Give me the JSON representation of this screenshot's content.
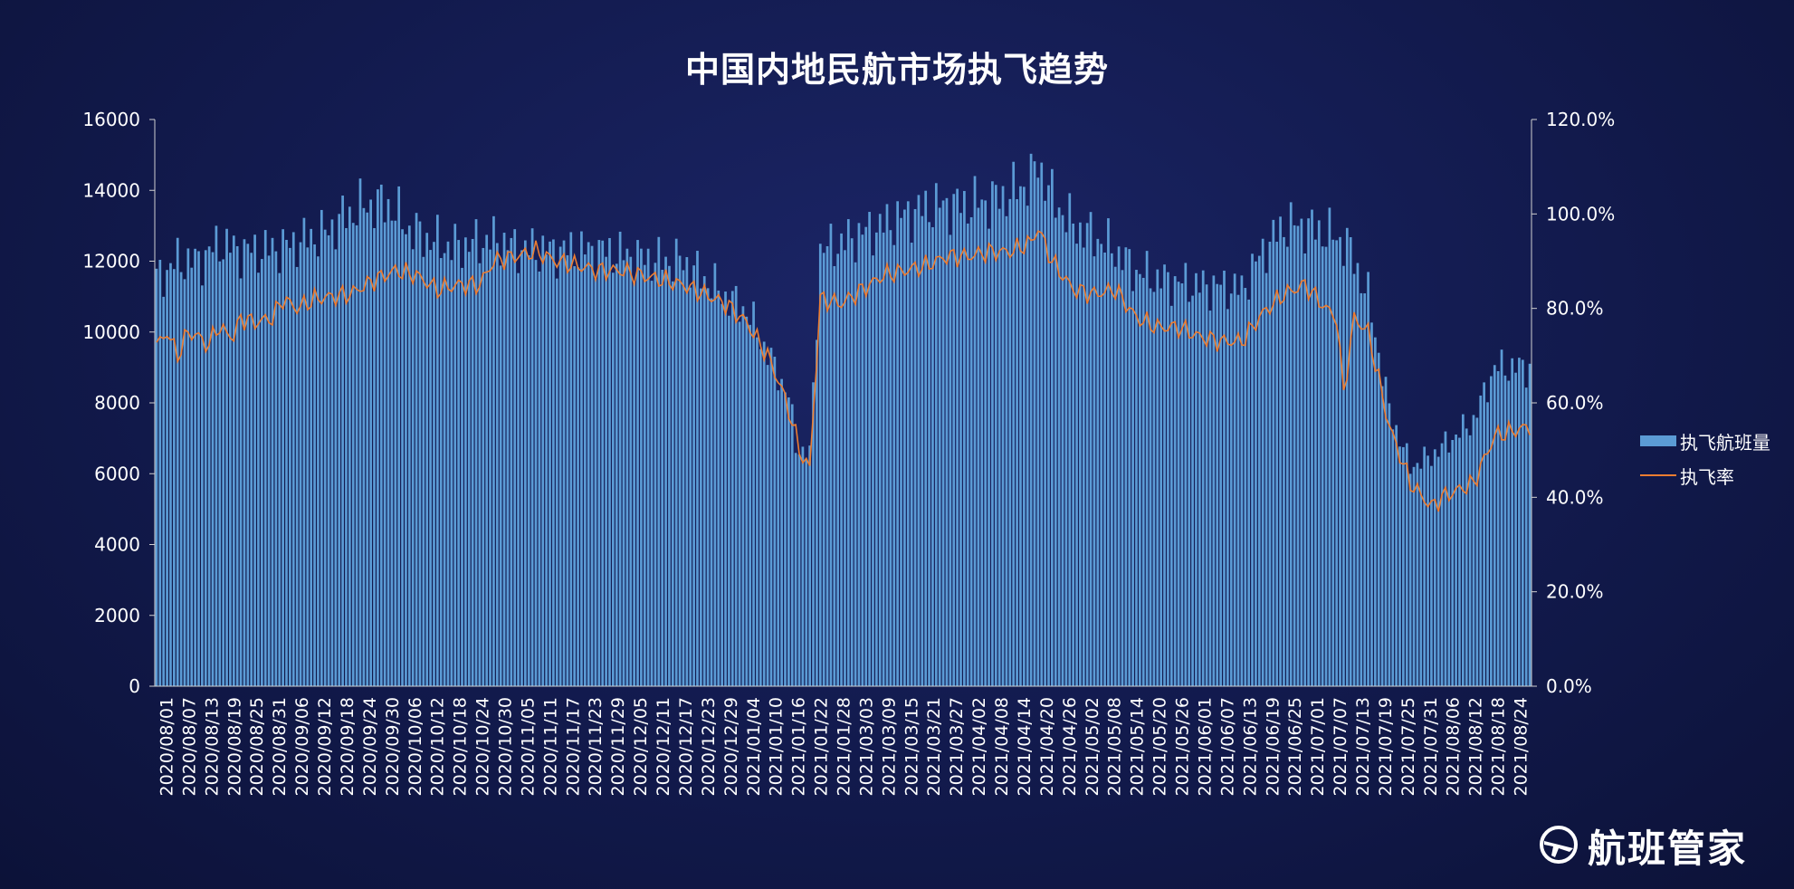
{
  "brand": {
    "name": "航班管家",
    "logo_icon": "plane-globe-logo-icon"
  },
  "colors": {
    "bar": "#5b9bd5",
    "line": "#ed7d31",
    "axis": "#d0d0d0",
    "background": "#121a4d"
  },
  "chart_data": {
    "type": "bar",
    "title": "中国内地民航市场执飞趋势",
    "xlabel": "",
    "ylabel": "",
    "y_left_lim": [
      0,
      16000
    ],
    "y_left_ticks": [
      "0",
      "2000",
      "4000",
      "6000",
      "8000",
      "10000",
      "12000",
      "14000",
      "16000"
    ],
    "y_right_lim": [
      0,
      120
    ],
    "y_right_ticks": [
      "0.0%",
      "20.0%",
      "40.0%",
      "60.0%",
      "80.0%",
      "100.0%",
      "120.0%"
    ],
    "grid": false,
    "legend_position": "right",
    "x_start": "2020/08/01",
    "x_end": "2021/08/27",
    "x_tick_labels": [
      "2020/08/01",
      "2020/08/07",
      "2020/08/13",
      "2020/08/19",
      "2020/08/25",
      "2020/08/31",
      "2020/09/06",
      "2020/09/12",
      "2020/09/18",
      "2020/09/24",
      "2020/09/30",
      "2020/10/06",
      "2020/10/12",
      "2020/10/18",
      "2020/10/24",
      "2020/10/30",
      "2020/11/05",
      "2020/11/11",
      "2020/11/17",
      "2020/11/23",
      "2020/11/29",
      "2020/12/05",
      "2020/12/11",
      "2020/12/17",
      "2020/12/23",
      "2020/12/29",
      "2021/01/04",
      "2021/01/10",
      "2021/01/16",
      "2021/01/22",
      "2021/01/28",
      "2021/03/03",
      "2021/03/09",
      "2021/03/15",
      "2021/03/21",
      "2021/03/27",
      "2021/04/02",
      "2021/04/08",
      "2021/04/14",
      "2021/04/20",
      "2021/04/26",
      "2021/05/02",
      "2021/05/08",
      "2021/05/14",
      "2021/05/20",
      "2021/05/26",
      "2021/06/01",
      "2021/06/07",
      "2021/06/13",
      "2021/06/19",
      "2021/06/25",
      "2021/07/01",
      "2021/07/07",
      "2021/07/13",
      "2021/07/19",
      "2021/07/25",
      "2021/07/31",
      "2021/08/06",
      "2021/08/12",
      "2021/08/18",
      "2021/08/24"
    ],
    "series": [
      {
        "name": "执飞航班量",
        "type": "bar",
        "axis": "left",
        "keypoints": [
          [
            0,
            11500
          ],
          [
            6,
            12000
          ],
          [
            12,
            12000
          ],
          [
            18,
            12500
          ],
          [
            24,
            12300
          ],
          [
            30,
            12300
          ],
          [
            36,
            12400
          ],
          [
            42,
            12600
          ],
          [
            48,
            12800
          ],
          [
            54,
            13300
          ],
          [
            60,
            13600
          ],
          [
            66,
            13600
          ],
          [
            72,
            12900
          ],
          [
            78,
            12600
          ],
          [
            84,
            12400
          ],
          [
            90,
            12500
          ],
          [
            96,
            12600
          ],
          [
            102,
            12400
          ],
          [
            108,
            12300
          ],
          [
            114,
            12300
          ],
          [
            120,
            12300
          ],
          [
            126,
            12300
          ],
          [
            132,
            12200
          ],
          [
            138,
            12100
          ],
          [
            144,
            12000
          ],
          [
            150,
            12000
          ],
          [
            156,
            11500
          ],
          [
            162,
            11000
          ],
          [
            168,
            10600
          ],
          [
            174,
            9400
          ],
          [
            180,
            8200
          ],
          [
            182,
            6800
          ],
          [
            186,
            6500
          ],
          [
            189,
            12300
          ],
          [
            195,
            12500
          ],
          [
            201,
            12800
          ],
          [
            207,
            13000
          ],
          [
            213,
            13300
          ],
          [
            219,
            13500
          ],
          [
            225,
            13600
          ],
          [
            231,
            13600
          ],
          [
            237,
            13700
          ],
          [
            243,
            13900
          ],
          [
            249,
            14300
          ],
          [
            251,
            14800
          ],
          [
            255,
            13800
          ],
          [
            261,
            13000
          ],
          [
            267,
            12700
          ],
          [
            273,
            12300
          ],
          [
            279,
            11700
          ],
          [
            285,
            11500
          ],
          [
            291,
            11400
          ],
          [
            297,
            11300
          ],
          [
            303,
            11300
          ],
          [
            309,
            11200
          ],
          [
            315,
            12300
          ],
          [
            321,
            13000
          ],
          [
            327,
            13000
          ],
          [
            333,
            12800
          ],
          [
            339,
            12500
          ],
          [
            345,
            11000
          ],
          [
            351,
            7800
          ],
          [
            357,
            6200
          ],
          [
            363,
            6500
          ],
          [
            369,
            7000
          ],
          [
            375,
            7500
          ],
          [
            381,
            9000
          ],
          [
            391,
            9000
          ]
        ]
      },
      {
        "name": "执飞率",
        "type": "line",
        "axis": "right",
        "unit": "%",
        "keypoints": [
          [
            0,
            72
          ],
          [
            3,
            75
          ],
          [
            6,
            70
          ],
          [
            9,
            75
          ],
          [
            12,
            74
          ],
          [
            15,
            72
          ],
          [
            17,
            76
          ],
          [
            22,
            74
          ],
          [
            24,
            78
          ],
          [
            28,
            77
          ],
          [
            33,
            78
          ],
          [
            36,
            82
          ],
          [
            40,
            80
          ],
          [
            45,
            82
          ],
          [
            55,
            83
          ],
          [
            62,
            86
          ],
          [
            68,
            88
          ],
          [
            74,
            87
          ],
          [
            80,
            84
          ],
          [
            86,
            85
          ],
          [
            92,
            85
          ],
          [
            96,
            90
          ],
          [
            102,
            91
          ],
          [
            108,
            92
          ],
          [
            114,
            90
          ],
          [
            120,
            89
          ],
          [
            126,
            88
          ],
          [
            132,
            88
          ],
          [
            138,
            87
          ],
          [
            144,
            86
          ],
          [
            150,
            85
          ],
          [
            156,
            83
          ],
          [
            162,
            81
          ],
          [
            168,
            77
          ],
          [
            174,
            70
          ],
          [
            178,
            63
          ],
          [
            181,
            56
          ],
          [
            183,
            50
          ],
          [
            186,
            46
          ],
          [
            189,
            82
          ],
          [
            195,
            81
          ],
          [
            201,
            84
          ],
          [
            207,
            87
          ],
          [
            213,
            88
          ],
          [
            219,
            89
          ],
          [
            225,
            91
          ],
          [
            231,
            91
          ],
          [
            237,
            92
          ],
          [
            243,
            92
          ],
          [
            249,
            94
          ],
          [
            251,
            97
          ],
          [
            255,
            90
          ],
          [
            261,
            84
          ],
          [
            267,
            83
          ],
          [
            273,
            84
          ],
          [
            279,
            78
          ],
          [
            285,
            76
          ],
          [
            291,
            76
          ],
          [
            297,
            74
          ],
          [
            303,
            73
          ],
          [
            309,
            73
          ],
          [
            315,
            79
          ],
          [
            321,
            83
          ],
          [
            327,
            85
          ],
          [
            333,
            80
          ],
          [
            336,
            78
          ],
          [
            338,
            62
          ],
          [
            341,
            78
          ],
          [
            345,
            75
          ],
          [
            351,
            55
          ],
          [
            357,
            43
          ],
          [
            363,
            38
          ],
          [
            366,
            40
          ],
          [
            369,
            41
          ],
          [
            375,
            43
          ],
          [
            381,
            53
          ],
          [
            391,
            55
          ]
        ]
      }
    ]
  }
}
